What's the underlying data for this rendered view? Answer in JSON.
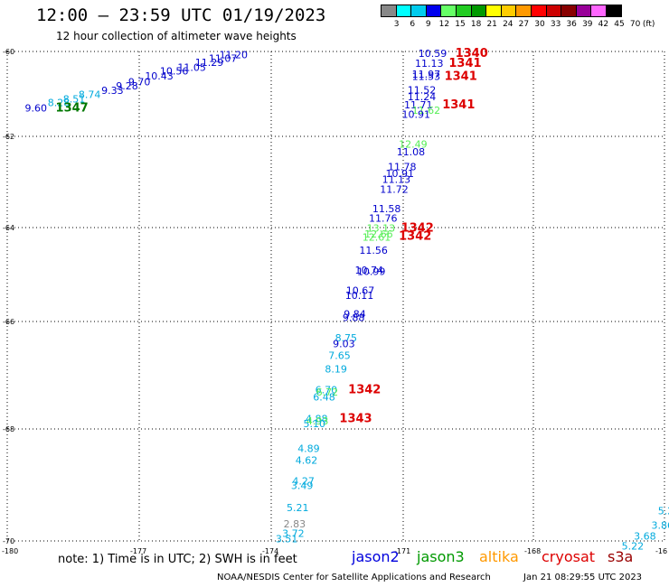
{
  "header": {
    "title": "12:00 – 23:59 UTC 01/19/2023",
    "subtitle": "12 hour collection of altimeter wave heights"
  },
  "legend": {
    "colors": [
      "#888888",
      "#00ffff",
      "#00ccee",
      "#0000ee",
      "#66ff66",
      "#22cc22",
      "#009900",
      "#ffff00",
      "#ffcc00",
      "#ff9900",
      "#ff0000",
      "#cc0000",
      "#880000",
      "#990099",
      "#ff66ff",
      "#000000"
    ],
    "labels": [
      "3",
      "6",
      "9",
      "12",
      "15",
      "18",
      "21",
      "24",
      "27",
      "30",
      "33",
      "36",
      "39",
      "42",
      "45",
      "70"
    ],
    "unit": "(ft)"
  },
  "map": {
    "lat_axis_labels": [
      "-60",
      "-62",
      "-64",
      "-66",
      "-68",
      "-70"
    ],
    "lon_axis_labels": [
      "-180",
      "-177",
      "-174",
      "-171",
      "-168",
      "-16"
    ]
  },
  "observations": [
    {
      "text": "11.20",
      "lon": -175.18,
      "lat": -60.07,
      "color": "#0000cc"
    },
    {
      "text": "11.07",
      "lon": -175.42,
      "lat": -60.16,
      "color": "#0000cc"
    },
    {
      "text": "11.29",
      "lon": -175.73,
      "lat": -60.26,
      "color": "#0000cc"
    },
    {
      "text": "11.05",
      "lon": -176.13,
      "lat": -60.37,
      "color": "#0000cc"
    },
    {
      "text": "10.56",
      "lon": -176.53,
      "lat": -60.46,
      "color": "#0000cc"
    },
    {
      "text": "10.43",
      "lon": -176.87,
      "lat": -60.57,
      "color": "#0000cc"
    },
    {
      "text": "9.70",
      "lon": -177.25,
      "lat": -60.71,
      "color": "#0000cc"
    },
    {
      "text": "9.28",
      "lon": -177.53,
      "lat": -60.81,
      "color": "#0000cc"
    },
    {
      "text": "9.33",
      "lon": -177.86,
      "lat": -60.91,
      "color": "#0000cc"
    },
    {
      "text": "8.74",
      "lon": -178.38,
      "lat": -61.01,
      "color": "#00aadd"
    },
    {
      "text": "8.51",
      "lon": -178.73,
      "lat": -61.12,
      "color": "#00aadd"
    },
    {
      "text": "8.28",
      "lon": -179.08,
      "lat": -61.2,
      "color": "#00aadd"
    },
    {
      "text": "9.60",
      "lon": -179.6,
      "lat": -61.33,
      "color": "#0000cc"
    },
    {
      "text": "1347",
      "lon": -178.9,
      "lat": -61.33,
      "color": "#007700",
      "bold": true
    },
    {
      "text": "10.59",
      "lon": -170.65,
      "lat": -60.04,
      "color": "#0000cc"
    },
    {
      "text": "1340",
      "lon": -169.8,
      "lat": -60.04,
      "color": "#dd0000",
      "bold": true
    },
    {
      "text": "11.13",
      "lon": -170.73,
      "lat": -60.28,
      "color": "#0000cc"
    },
    {
      "text": "1341",
      "lon": -169.95,
      "lat": -60.28,
      "color": "#dd0000",
      "bold": true
    },
    {
      "text": "11.97",
      "lon": -170.8,
      "lat": -60.53,
      "color": "#0000cc"
    },
    {
      "text": "11.53",
      "lon": -170.8,
      "lat": -60.59,
      "color": "#0000cc"
    },
    {
      "text": "1341",
      "lon": -170.05,
      "lat": -60.58,
      "color": "#dd0000",
      "bold": true
    },
    {
      "text": "11.52",
      "lon": -170.9,
      "lat": -60.9,
      "color": "#0000cc"
    },
    {
      "text": "11.24",
      "lon": -170.9,
      "lat": -61.06,
      "color": "#0000cc"
    },
    {
      "text": "11.71",
      "lon": -170.98,
      "lat": -61.26,
      "color": "#0000cc"
    },
    {
      "text": "1341",
      "lon": -170.1,
      "lat": -61.25,
      "color": "#dd0000",
      "bold": true
    },
    {
      "text": "11.62",
      "lon": -170.8,
      "lat": -61.38,
      "color": "#55ee55"
    },
    {
      "text": "10.91",
      "lon": -171.03,
      "lat": -61.48,
      "color": "#0000cc"
    },
    {
      "text": "12.49",
      "lon": -171.1,
      "lat": -62.17,
      "color": "#55ee55"
    },
    {
      "text": "11.08",
      "lon": -171.15,
      "lat": -62.34,
      "color": "#0000cc"
    },
    {
      "text": "11.78",
      "lon": -171.35,
      "lat": -62.66,
      "color": "#0000cc"
    },
    {
      "text": "10.91",
      "lon": -171.4,
      "lat": -62.81,
      "color": "#0000cc"
    },
    {
      "text": "11.13",
      "lon": -171.48,
      "lat": -62.94,
      "color": "#0000cc"
    },
    {
      "text": "11.72",
      "lon": -171.53,
      "lat": -63.16,
      "color": "#0000cc"
    },
    {
      "text": "11.58",
      "lon": -171.7,
      "lat": -63.58,
      "color": "#0000cc"
    },
    {
      "text": "11.76",
      "lon": -171.78,
      "lat": -63.79,
      "color": "#0000cc"
    },
    {
      "text": "13.13",
      "lon": -171.83,
      "lat": -64.01,
      "color": "#55ee55"
    },
    {
      "text": "12.66",
      "lon": -171.88,
      "lat": -64.13,
      "color": "#55ee55"
    },
    {
      "text": "12.61",
      "lon": -171.93,
      "lat": -64.2,
      "color": "#55ee55"
    },
    {
      "text": "1342",
      "lon": -171.05,
      "lat": -64.01,
      "color": "#dd0000",
      "bold": true
    },
    {
      "text": "1342",
      "lon": -171.1,
      "lat": -64.18,
      "color": "#dd0000",
      "bold": true
    },
    {
      "text": "11.56",
      "lon": -172.0,
      "lat": -64.48,
      "color": "#0000cc"
    },
    {
      "text": "10.74",
      "lon": -172.1,
      "lat": -64.9,
      "color": "#0000cc"
    },
    {
      "text": "10.99",
      "lon": -172.05,
      "lat": -64.93,
      "color": "#0000cc"
    },
    {
      "text": "10.67",
      "lon": -172.3,
      "lat": -65.34,
      "color": "#0000cc"
    },
    {
      "text": "10.11",
      "lon": -172.32,
      "lat": -65.44,
      "color": "#0000cc"
    },
    {
      "text": "9.84",
      "lon": -172.35,
      "lat": -65.84,
      "color": "#0000cc"
    },
    {
      "text": "9.88",
      "lon": -172.38,
      "lat": -65.91,
      "color": "#0000cc"
    },
    {
      "text": "8.75",
      "lon": -172.55,
      "lat": -66.3,
      "color": "#00aadd"
    },
    {
      "text": "9.03",
      "lon": -172.6,
      "lat": -66.41,
      "color": "#0000cc"
    },
    {
      "text": "7.65",
      "lon": -172.7,
      "lat": -66.63,
      "color": "#00aadd"
    },
    {
      "text": "8.19",
      "lon": -172.78,
      "lat": -66.88,
      "color": "#00aadd"
    },
    {
      "text": "6.70",
      "lon": -173.0,
      "lat": -67.27,
      "color": "#00aadd"
    },
    {
      "text": "6.72",
      "lon": -172.98,
      "lat": -67.31,
      "color": "#55ee55"
    },
    {
      "text": "6.48",
      "lon": -173.05,
      "lat": -67.4,
      "color": "#00aadd"
    },
    {
      "text": "1342",
      "lon": -172.25,
      "lat": -67.27,
      "color": "#dd0000",
      "bold": true
    },
    {
      "text": "4.88",
      "lon": -173.22,
      "lat": -67.81,
      "color": "#00aadd"
    },
    {
      "text": "4.93",
      "lon": -173.2,
      "lat": -67.85,
      "color": "#55ee55"
    },
    {
      "text": "5.10",
      "lon": -173.27,
      "lat": -67.9,
      "color": "#00aadd"
    },
    {
      "text": "1343",
      "lon": -172.45,
      "lat": -67.81,
      "color": "#dd0000",
      "bold": true
    },
    {
      "text": "4.89",
      "lon": -173.4,
      "lat": -68.35,
      "color": "#00aadd"
    },
    {
      "text": "4.62",
      "lon": -173.45,
      "lat": -68.56,
      "color": "#00aadd"
    },
    {
      "text": "4.27",
      "lon": -173.52,
      "lat": -68.93,
      "color": "#00aadd"
    },
    {
      "text": "3.49",
      "lon": -173.55,
      "lat": -69.01,
      "color": "#00aadd"
    },
    {
      "text": "5.21",
      "lon": -173.65,
      "lat": -69.4,
      "color": "#00aadd"
    },
    {
      "text": "2.83",
      "lon": -173.72,
      "lat": -69.69,
      "color": "#888888"
    },
    {
      "text": "3.72",
      "lon": -173.75,
      "lat": -69.86,
      "color": "#00aadd"
    },
    {
      "text": "3.51",
      "lon": -173.9,
      "lat": -69.96,
      "color": "#00aadd"
    },
    {
      "text": "5.2",
      "lon": -165.15,
      "lat": -69.46,
      "color": "#00aadd"
    },
    {
      "text": "3.86",
      "lon": -165.3,
      "lat": -69.72,
      "color": "#00aadd"
    },
    {
      "text": "3.68",
      "lon": -165.7,
      "lat": -69.91,
      "color": "#00aadd"
    },
    {
      "text": "5.22",
      "lon": -165.98,
      "lat": -70.09,
      "color": "#00aadd"
    }
  ],
  "footer": {
    "note": "note:  1) Time is in UTC;  2) SWH is in feet",
    "satellites": [
      {
        "name": "jason2",
        "color": "#0000dd"
      },
      {
        "name": "jason3",
        "color": "#009900"
      },
      {
        "name": "altika",
        "color": "#ff9900"
      },
      {
        "name": "cryosat",
        "color": "#dd0000"
      },
      {
        "name": "s3a",
        "color": "#990000"
      }
    ],
    "credit": "NOAA/NESDIS Center for Satellite Applications and Research",
    "timestamp": "Jan 21 08:29:55 UTC 2023"
  }
}
